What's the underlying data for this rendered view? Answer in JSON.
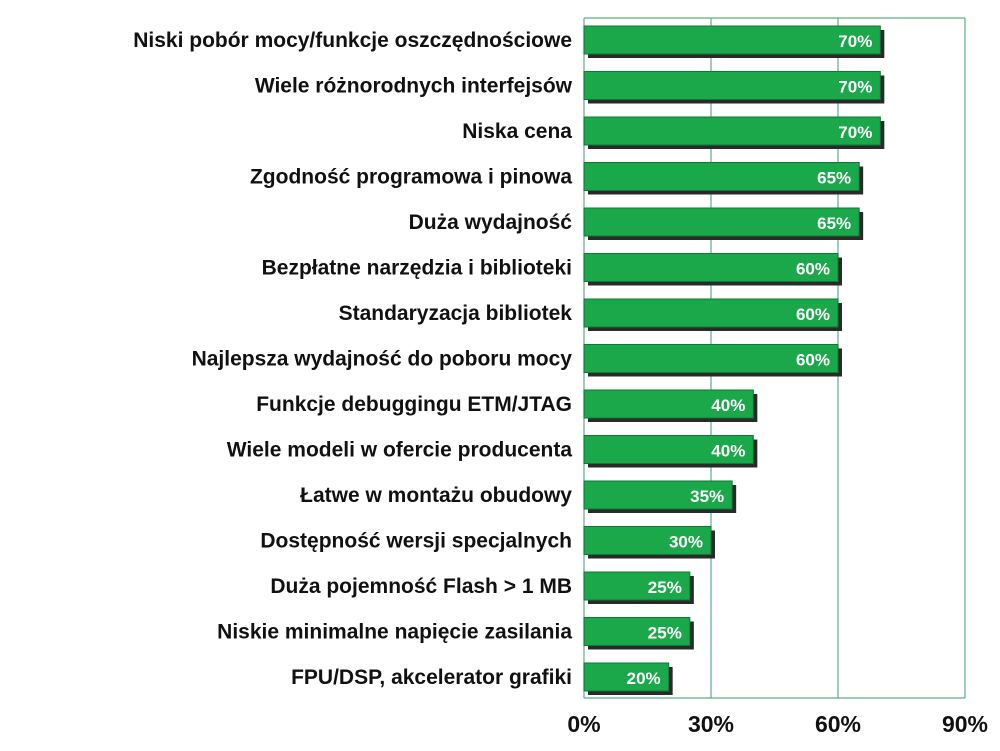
{
  "chart_data": {
    "type": "bar",
    "orientation": "horizontal",
    "categories": [
      "Niski pobór mocy/funkcje oszczędnościowe",
      "Wiele różnorodnych interfejsów",
      "Niska cena",
      "Zgodność programowa i pinowa",
      "Duża wydajność",
      "Bezpłatne narzędzia i biblioteki",
      "Standaryzacja bibliotek",
      "Najlepsza wydajność do poboru mocy",
      "Funkcje debuggingu ETM/JTAG",
      "Wiele modeli w ofercie producenta",
      "Łatwe w montażu obudowy",
      "Dostępność wersji specjalnych",
      "Duża pojemność Flash > 1 MB",
      "Niskie minimalne napięcie zasilania",
      "FPU/DSP, akcelerator grafiki"
    ],
    "values": [
      70,
      70,
      70,
      65,
      65,
      60,
      60,
      60,
      40,
      40,
      35,
      30,
      25,
      25,
      20
    ],
    "value_labels": [
      "70%",
      "70%",
      "70%",
      "65%",
      "65%",
      "60%",
      "60%",
      "60%",
      "40%",
      "40%",
      "35%",
      "30%",
      "25%",
      "25%",
      "20%"
    ],
    "xlim": [
      0,
      90
    ],
    "x_ticks": [
      0,
      30,
      60,
      90
    ],
    "x_tick_labels": [
      "0%",
      "30%",
      "60%",
      "90%"
    ],
    "grid": "vertical",
    "colors": {
      "bar": "#1aa84a",
      "bar_shadow": "#2a2a2a",
      "grid": "#5fae88"
    }
  }
}
